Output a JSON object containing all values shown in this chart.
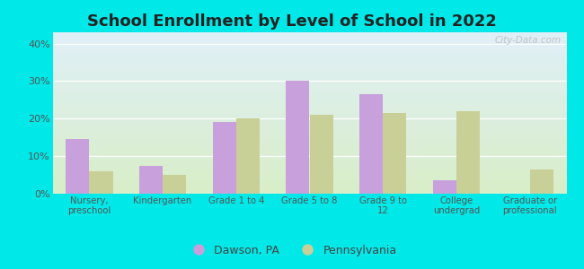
{
  "title": "School Enrollment by Level of School in 2022",
  "categories": [
    "Nursery,\npreschool",
    "Kindergarten",
    "Grade 1 to 4",
    "Grade 5 to 8",
    "Grade 9 to\n12",
    "College\nundergrad",
    "Graduate or\nprofessional"
  ],
  "dawson_values": [
    14.5,
    7.5,
    19.0,
    30.0,
    26.5,
    3.5,
    0.0
  ],
  "pennsylvania_values": [
    6.0,
    5.0,
    20.0,
    21.0,
    21.5,
    22.0,
    6.5
  ],
  "dawson_color": "#c8a0dc",
  "pennsylvania_color": "#c8d098",
  "background_outer": "#00e8e8",
  "background_inner_top": "#e0f0f8",
  "background_inner_bottom": "#d8eec8",
  "title_fontsize": 13,
  "ylabel_ticks": [
    0,
    10,
    20,
    30,
    40
  ],
  "ylim": [
    0,
    43
  ],
  "bar_width": 0.32,
  "legend_labels": [
    "Dawson, PA",
    "Pennsylvania"
  ],
  "watermark": "City-Data.com"
}
